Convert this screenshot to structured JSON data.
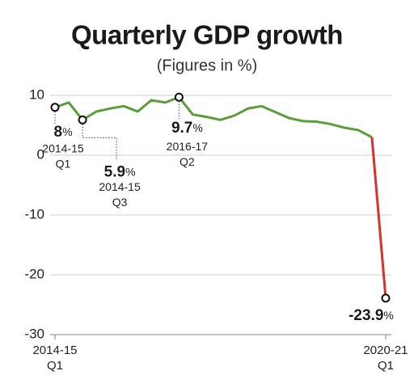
{
  "chart_data": {
    "type": "line",
    "title": "Quarterly GDP growth",
    "subtitle": "(Figures in %)",
    "categories": [
      "2014-15 Q1",
      null,
      null,
      null,
      null,
      null,
      null,
      null,
      null,
      null,
      null,
      null,
      null,
      null,
      null,
      null,
      null,
      null,
      null,
      null,
      null,
      null,
      null,
      null,
      "2020-21 Q1"
    ],
    "series": [
      {
        "color": "#5a9e3a",
        "drop_color": "#d9302c",
        "values": [
          8,
          8.8,
          5.9,
          7.3,
          7.8,
          8.2,
          7.3,
          9.2,
          8.8,
          9.7,
          6.8,
          6.4,
          5.9,
          6.6,
          7.8,
          8.2,
          7.2,
          6.2,
          5.7,
          5.6,
          5.2,
          4.6,
          4.2,
          3,
          -23.9
        ],
        "value_labels": [
          "8%",
          null,
          "5.9%",
          null,
          null,
          null,
          null,
          null,
          null,
          "9.7%",
          null,
          null,
          null,
          null,
          null,
          null,
          null,
          null,
          null,
          null,
          null,
          null,
          null,
          null,
          "-23.9%"
        ],
        "periods": [
          [
            "2014-15",
            "Q1"
          ],
          null,
          [
            "2014-15",
            "Q3"
          ],
          null,
          null,
          null,
          null,
          null,
          null,
          [
            "2016-17",
            "Q2"
          ],
          null,
          null,
          null,
          null,
          null,
          null,
          null,
          null,
          null,
          null,
          null,
          null,
          null,
          null,
          null
        ]
      }
    ],
    "ylim": [
      -30,
      10
    ],
    "yticks": [
      -30,
      -20,
      -10,
      0,
      10
    ],
    "grid": true
  }
}
